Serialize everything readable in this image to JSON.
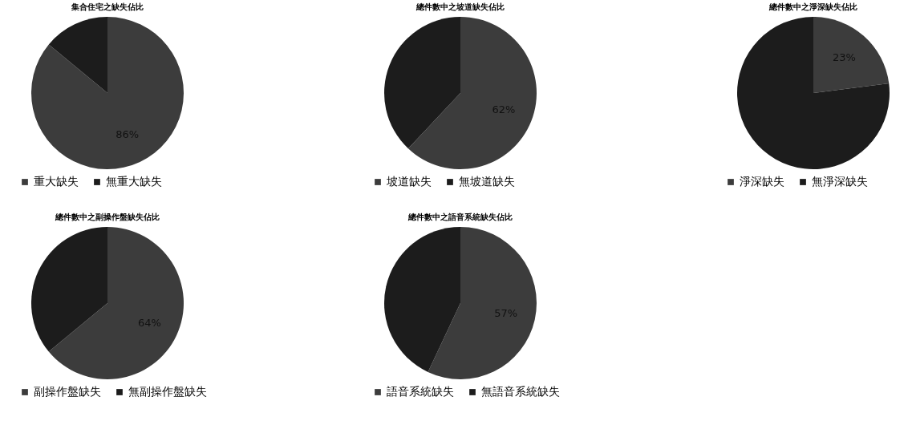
{
  "chart_data": [
    {
      "type": "pie",
      "title": "集合住宅之缺失佔比",
      "categories": [
        "重大缺失",
        "無重大缺失"
      ],
      "values": [
        86,
        14
      ],
      "value_labels": [
        "86%",
        null
      ],
      "colors": [
        "#3c3c3c",
        "#1c1c1c"
      ],
      "legend": "bottom"
    },
    {
      "type": "pie",
      "title": "總件數中之坡道缺失佔比",
      "categories": [
        "坡道缺失",
        "無坡道缺失"
      ],
      "values": [
        62,
        38
      ],
      "value_labels": [
        "62%",
        null
      ],
      "colors": [
        "#3c3c3c",
        "#1c1c1c"
      ],
      "legend": "bottom"
    },
    {
      "type": "pie",
      "title": "總件數中之淨深缺失佔比",
      "categories": [
        "淨深缺失",
        "無淨深缺失"
      ],
      "values": [
        23,
        77
      ],
      "value_labels": [
        "23%",
        null
      ],
      "colors": [
        "#3c3c3c",
        "#1c1c1c"
      ],
      "legend": "bottom"
    },
    {
      "type": "pie",
      "title": "總件數中之副操作盤缺失佔比",
      "categories": [
        "副操作盤缺失",
        "無副操作盤缺失"
      ],
      "values": [
        64,
        36
      ],
      "value_labels": [
        "64%",
        null
      ],
      "colors": [
        "#3c3c3c",
        "#1c1c1c"
      ],
      "legend": "bottom"
    },
    {
      "type": "pie",
      "title": "總件數中之語音系統缺失佔比",
      "categories": [
        "語音系統缺失",
        "無語音系統缺失"
      ],
      "values": [
        57,
        43
      ],
      "value_labels": [
        "57%",
        null
      ],
      "colors": [
        "#3c3c3c",
        "#1c1c1c"
      ],
      "legend": "bottom"
    }
  ]
}
